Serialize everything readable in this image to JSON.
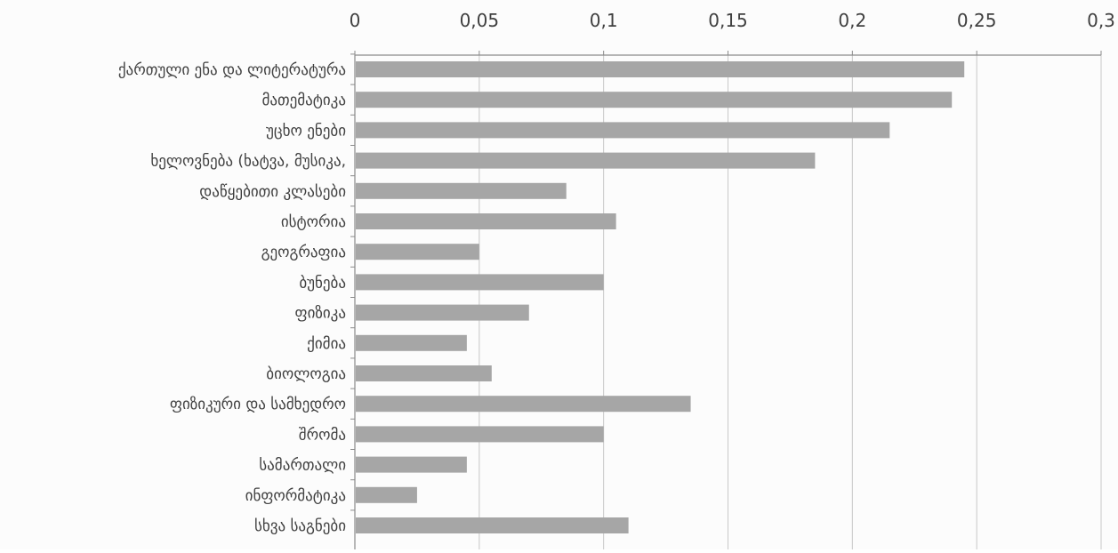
{
  "chart_data": {
    "type": "bar",
    "orientation": "horizontal",
    "title": "",
    "xlabel": "",
    "ylabel": "",
    "xlim": [
      0,
      0.3
    ],
    "x_ticks": [
      0,
      0.05,
      0.1,
      0.15,
      0.2,
      0.25,
      0.3
    ],
    "x_tick_labels": [
      "0",
      "0,05",
      "0,1",
      "0,15",
      "0,2",
      "0,25",
      "0,3"
    ],
    "x_axis_position": "top",
    "grid": true,
    "legend": "none",
    "categories": [
      "ქართული ენა და ლიტერატურა",
      "მათემატიკა",
      "უცხო ენები",
      "ხელოვნება (ხატვა, მუსიკა,",
      "დაწყებითი კლასები",
      "ისტორია",
      "გეოგრაფია",
      "ბუნება",
      "ფიზიკა",
      "ქიმია",
      "ბიოლოგია",
      "ფიზიკური და სამხედრო",
      "შრომა",
      "სამართალი",
      "ინფორმატიკა",
      "სხვა საგნები"
    ],
    "values": [
      0.245,
      0.24,
      0.215,
      0.185,
      0.085,
      0.105,
      0.05,
      0.1,
      0.07,
      0.045,
      0.055,
      0.135,
      0.1,
      0.045,
      0.025,
      0.11
    ],
    "colors": {
      "bar": "#a6a6a6",
      "grid": "#c8c8c8",
      "axis": "#8a8a8a",
      "text": "#404040"
    }
  }
}
